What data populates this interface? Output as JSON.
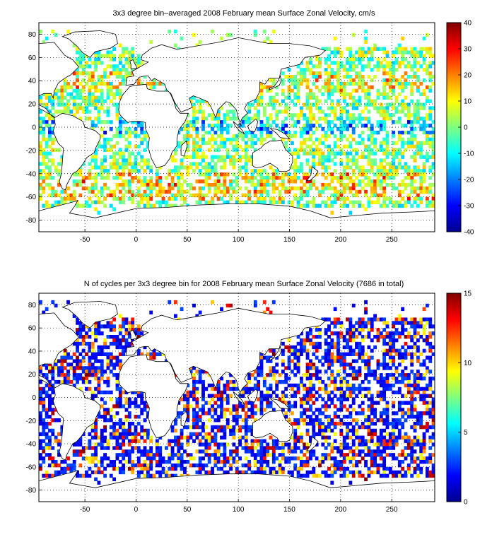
{
  "chart_data": [
    {
      "type": "heatmap",
      "title": "3x3 degree bin–averaged 2008 February mean Surface Zonal Velocity, cm/s",
      "xlabel": "",
      "ylabel": "",
      "xlim": [
        -95,
        292
      ],
      "ylim": [
        -90,
        90
      ],
      "xticks": [
        -50,
        0,
        50,
        100,
        150,
        200,
        250
      ],
      "yticks": [
        -80,
        -60,
        -40,
        -20,
        0,
        20,
        40,
        60,
        80
      ],
      "grid": true,
      "bin_size_deg": 3,
      "colorbar": {
        "min": -40,
        "max": 40,
        "ticks": [
          -40,
          -30,
          -20,
          -10,
          0,
          10,
          20,
          30,
          40
        ],
        "colormap": "jet"
      }
    },
    {
      "type": "heatmap",
      "title": "N of cycles per 3x3 degree bin for 2008 February mean Surface Zonal Velocity (7686 in total)",
      "xlabel": "",
      "ylabel": "",
      "xlim": [
        -95,
        292
      ],
      "ylim": [
        -90,
        90
      ],
      "xticks": [
        -50,
        0,
        50,
        100,
        150,
        200,
        250
      ],
      "yticks": [
        -80,
        -60,
        -40,
        -20,
        0,
        20,
        40,
        60,
        80
      ],
      "grid": true,
      "bin_size_deg": 3,
      "colorbar": {
        "min": 0,
        "max": 15,
        "ticks": [
          0,
          5,
          10,
          15
        ],
        "colormap": "jet"
      }
    }
  ]
}
